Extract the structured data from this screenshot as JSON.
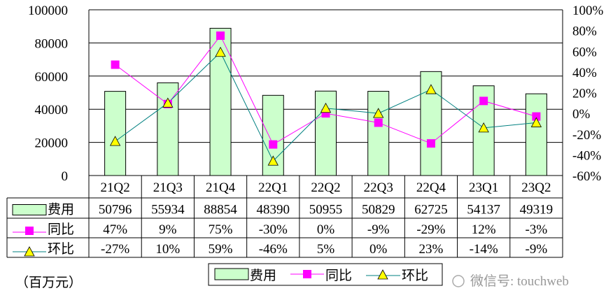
{
  "chart_data": {
    "type": "bar",
    "categories": [
      "21Q2",
      "21Q3",
      "21Q4",
      "22Q1",
      "22Q2",
      "22Q3",
      "22Q4",
      "23Q1",
      "23Q2"
    ],
    "series": [
      {
        "name": "费用",
        "kind": "bar",
        "axis": "left",
        "values": [
          50796,
          55934,
          88854,
          48390,
          50955,
          50829,
          62725,
          54137,
          49319
        ],
        "labels": [
          "50796",
          "55934",
          "88854",
          "48390",
          "50955",
          "50829",
          "62725",
          "54137",
          "49319"
        ],
        "color": "#ccffcc"
      },
      {
        "name": "同比",
        "kind": "line",
        "axis": "right",
        "values": [
          47,
          9,
          75,
          -30,
          0,
          -9,
          -29,
          12,
          -3
        ],
        "labels": [
          "47%",
          "9%",
          "75%",
          "-30%",
          "0%",
          "-9%",
          "-29%",
          "12%",
          "-3%"
        ],
        "color": "#ff00ff"
      },
      {
        "name": "环比",
        "kind": "line",
        "axis": "right",
        "values": [
          -27,
          10,
          59,
          -46,
          5,
          0,
          23,
          -14,
          -9
        ],
        "labels": [
          "-27%",
          "10%",
          "59%",
          "-46%",
          "5%",
          "0%",
          "23%",
          "-14%",
          "-9%"
        ],
        "color": "#008080"
      }
    ],
    "left_axis": {
      "range": [
        0,
        100000
      ],
      "ticks": [
        "0",
        "20000",
        "40000",
        "60000",
        "80000",
        "100000"
      ]
    },
    "right_axis": {
      "range": [
        -60,
        100
      ],
      "ticks": [
        "-60%",
        "-40%",
        "-20%",
        "0%",
        "20%",
        "40%",
        "60%",
        "80%",
        "100%"
      ]
    },
    "unit_label": "（百万元）",
    "legend": [
      "费用",
      "同比",
      "环比"
    ],
    "legend_position": "bottom",
    "grid": true
  },
  "watermark": "微信号: touchweb"
}
